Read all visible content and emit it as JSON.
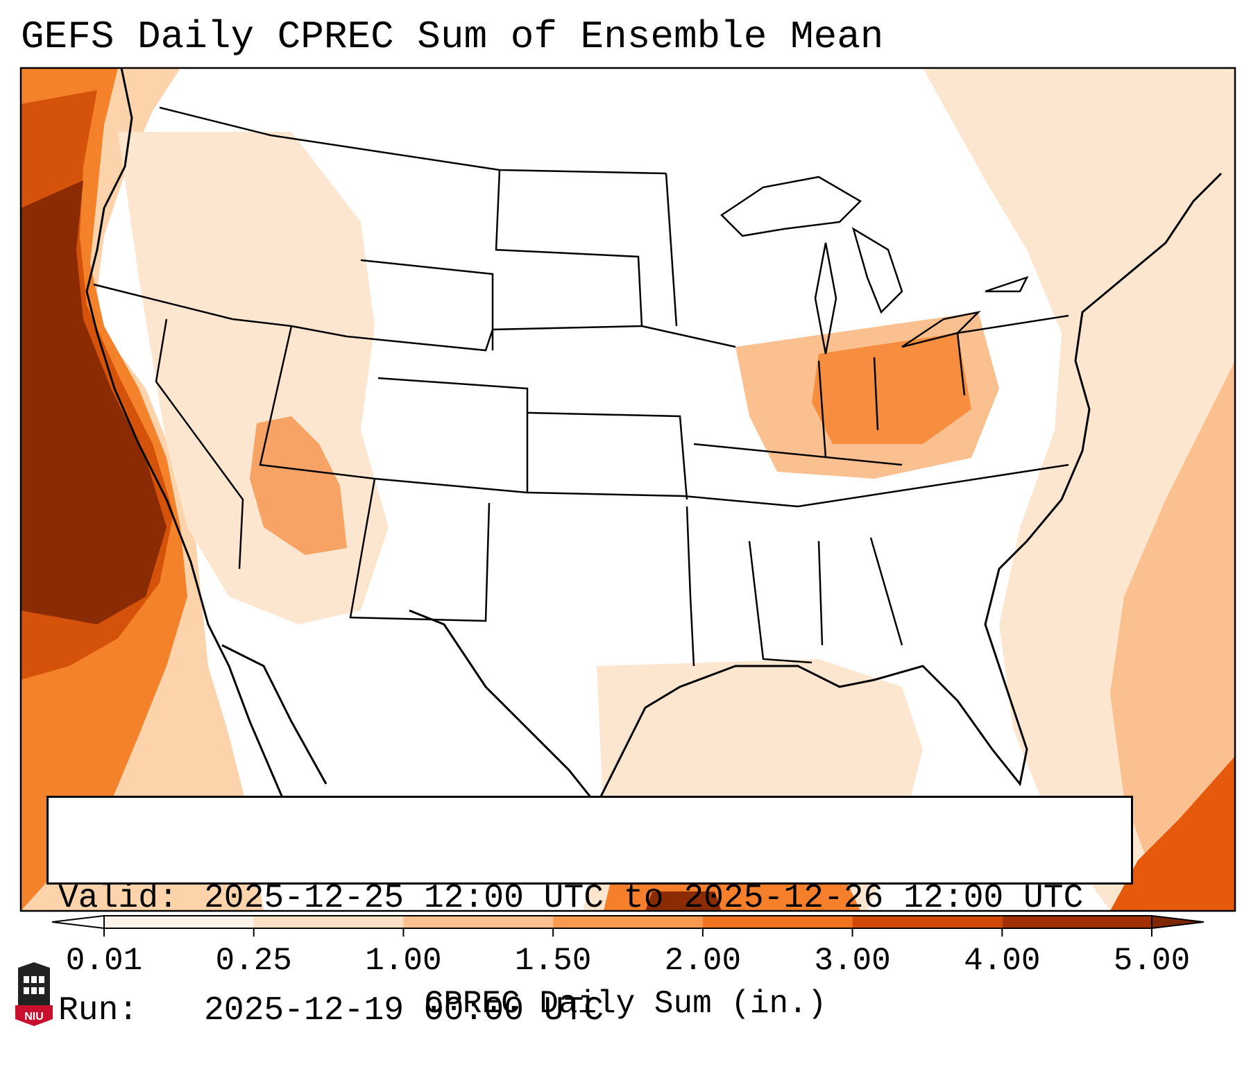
{
  "title": "GEFS Daily CPREC Sum of Ensemble Mean",
  "valid_label": "Valid:",
  "valid_value": "2025-12-25 12:00 UTC to 2025-12-26 12:00 UTC",
  "run_label": "Run:",
  "run_value": "2025-12-19 00:00 UTC",
  "colorbar": {
    "label": "CPREC Daily Sum (in.)",
    "ticks": [
      "0.01",
      "0.25",
      "1.00",
      "1.50",
      "2.00",
      "3.00",
      "4.00",
      "5.00"
    ],
    "colors": [
      "#fef3e9",
      "#fde0c5",
      "#fbc08f",
      "#f99a50",
      "#f07320",
      "#d04a06",
      "#a33003",
      "#7f2704"
    ],
    "under_color": "#ffffff",
    "over_color": "#7f2704"
  },
  "logo": {
    "text": "NIU",
    "color": "#c8102e"
  },
  "map": {
    "region": "Contiguous United States",
    "outline_color": "#000000"
  }
}
